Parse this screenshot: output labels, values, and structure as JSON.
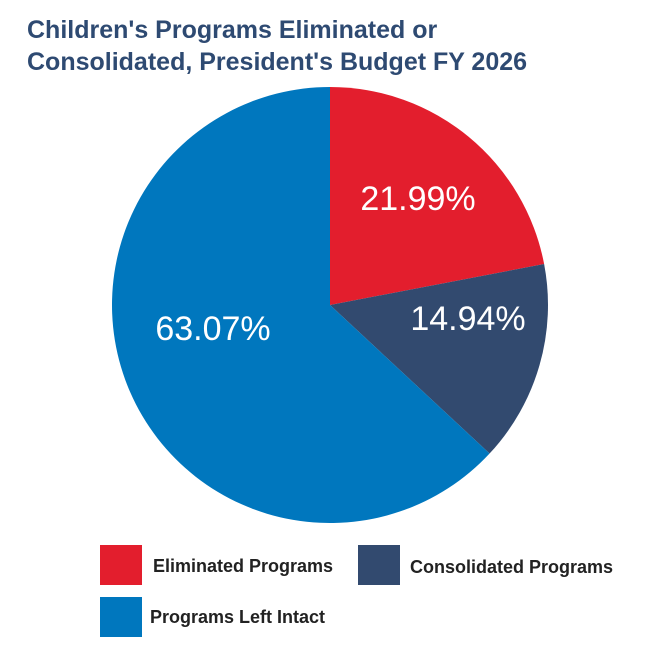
{
  "chart_data": {
    "type": "pie",
    "title_lines": [
      "Children's Programs Eliminated or",
      "Consolidated, President's Budget FY 2026"
    ],
    "slices": [
      {
        "label": "Eliminated Programs",
        "value": 21.99,
        "display": "21.99%",
        "color": "#e31e2d"
      },
      {
        "label": "Consolidated Programs",
        "value": 14.94,
        "display": "14.94%",
        "color": "#324a6f"
      },
      {
        "label": "Programs Left Intact",
        "value": 63.07,
        "display": "63.07%",
        "color": "#0077be"
      }
    ],
    "start_angle": "12 o'clock, clockwise",
    "legend_placement": "bottom"
  }
}
